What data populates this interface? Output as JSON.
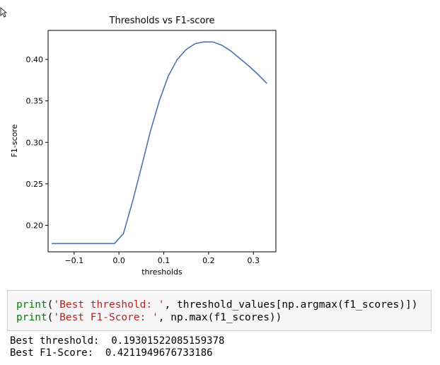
{
  "chart_data": {
    "type": "line",
    "title": "Thresholds vs F1-score",
    "xlabel": "thresholds",
    "ylabel": "F1-score",
    "xlim": [
      -0.158,
      0.35
    ],
    "ylim": [
      0.168,
      0.435
    ],
    "xticks": [
      -0.1,
      0.0,
      0.1,
      0.2,
      0.3
    ],
    "xtick_labels": [
      "−0.1",
      "0.0",
      "0.1",
      "0.2",
      "0.3"
    ],
    "yticks": [
      0.2,
      0.25,
      0.3,
      0.35,
      0.4
    ],
    "ytick_labels": [
      "0.20",
      "0.25",
      "0.30",
      "0.35",
      "0.40"
    ],
    "grid": false,
    "line_color": "#4c72b0",
    "series": [
      {
        "x": [
          -0.15,
          -0.1,
          -0.05,
          -0.01,
          0.01,
          0.03,
          0.05,
          0.07,
          0.09,
          0.11,
          0.13,
          0.15,
          0.17,
          0.19,
          0.21,
          0.23,
          0.25,
          0.27,
          0.29,
          0.31,
          0.33
        ],
        "y": [
          0.178,
          0.178,
          0.178,
          0.178,
          0.19,
          0.228,
          0.27,
          0.313,
          0.35,
          0.38,
          0.4,
          0.412,
          0.419,
          0.4212,
          0.421,
          0.417,
          0.41,
          0.401,
          0.392,
          0.382,
          0.371
        ]
      }
    ]
  },
  "code": {
    "line1": {
      "fn": "print",
      "open": "(",
      "str": "'Best threshold: '",
      "rest": ", threshold_values[np.argmax(f1_scores)])"
    },
    "line2": {
      "fn": "print",
      "open": "(",
      "str": "'Best F1-Score: '",
      "rest": ", np.max(f1_scores))"
    }
  },
  "output": {
    "line1": "Best threshold:  0.19301522085159378",
    "line2": "Best F1-Score:  0.4211949676733186"
  }
}
